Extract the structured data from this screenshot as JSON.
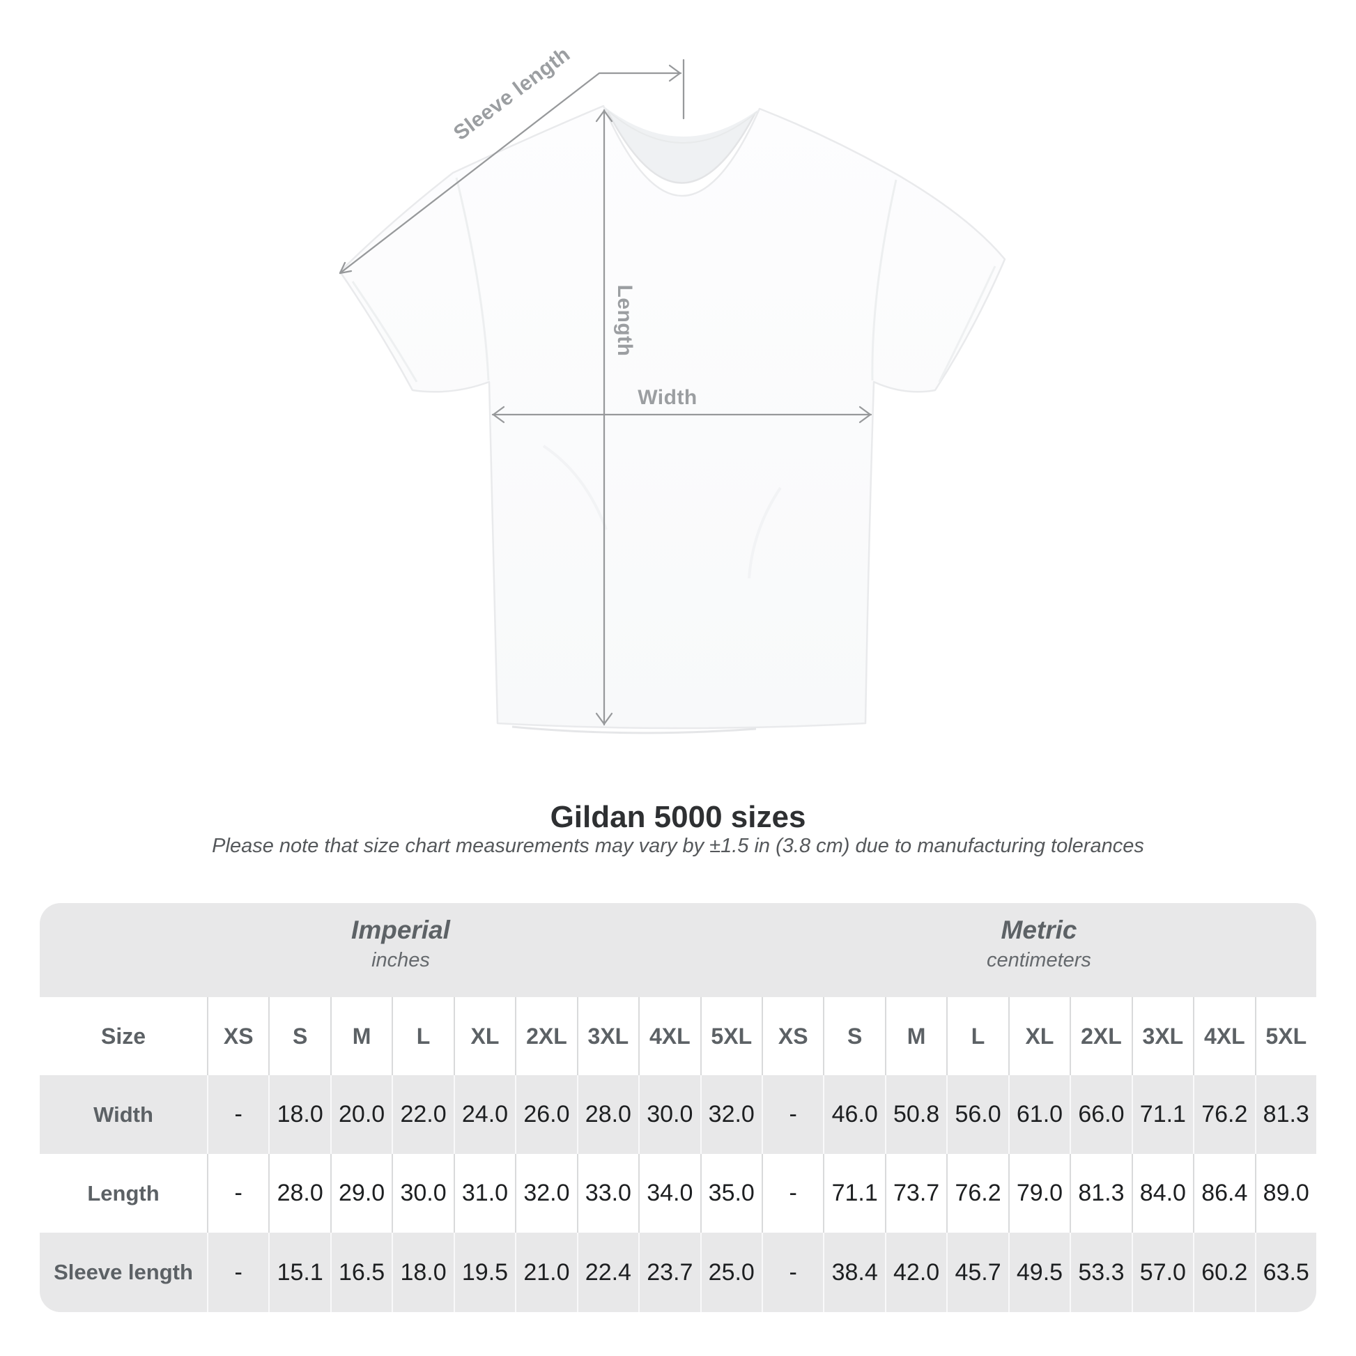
{
  "diagram": {
    "sleeve_label": "Sleeve length",
    "length_label": "Length",
    "width_label": "Width",
    "annotation_color": "#97999b",
    "annotation_label_color": "#9b9ea1"
  },
  "chart_data": {
    "type": "table",
    "title": "Gildan 5000 sizes",
    "note": "Please note that size chart measurements may vary by ±1.5 in (3.8 cm) due to manufacturing tolerances",
    "sections": [
      {
        "label": "Imperial",
        "sublabel": "inches"
      },
      {
        "label": "Metric",
        "sublabel": "centimeters"
      }
    ],
    "size_header": "Size",
    "sizes": [
      "XS",
      "S",
      "M",
      "L",
      "XL",
      "2XL",
      "3XL",
      "4XL",
      "5XL"
    ],
    "rows": [
      {
        "label": "Width",
        "imperial": [
          "-",
          "18.0",
          "20.0",
          "22.0",
          "24.0",
          "26.0",
          "28.0",
          "30.0",
          "32.0"
        ],
        "metric": [
          "-",
          "46.0",
          "50.8",
          "56.0",
          "61.0",
          "66.0",
          "71.1",
          "76.2",
          "81.3"
        ]
      },
      {
        "label": "Length",
        "imperial": [
          "-",
          "28.0",
          "29.0",
          "30.0",
          "31.0",
          "32.0",
          "33.0",
          "34.0",
          "35.0"
        ],
        "metric": [
          "-",
          "71.1",
          "73.7",
          "76.2",
          "79.0",
          "81.3",
          "84.0",
          "86.4",
          "89.0"
        ]
      },
      {
        "label": "Sleeve length",
        "imperial": [
          "-",
          "15.1",
          "16.5",
          "18.0",
          "19.5",
          "21.0",
          "22.4",
          "23.7",
          "25.0"
        ],
        "metric": [
          "-",
          "38.4",
          "42.0",
          "45.7",
          "49.5",
          "53.3",
          "57.0",
          "60.2",
          "63.5"
        ]
      }
    ],
    "colors": {
      "band_gray": "#e8e8e9",
      "row_stripe_gray": "#e8e8e9",
      "header_text": "#5c6165",
      "value_text": "#1d1f21",
      "title_text": "#2e3032",
      "separator_on_white": "#d9dadb",
      "separator_on_gray": "#f9f9fa"
    }
  }
}
